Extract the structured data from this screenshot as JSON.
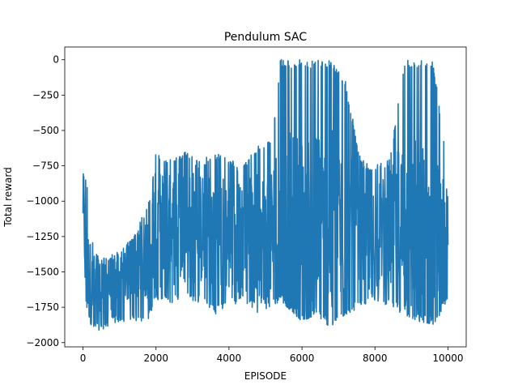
{
  "chart_data": {
    "type": "line",
    "title": "Pendulum SAC",
    "xlabel": "EPISODE",
    "ylabel": "Total reward",
    "xlim": [
      -500,
      10500
    ],
    "ylim": [
      -2030,
      90
    ],
    "xticks": [
      0,
      2000,
      4000,
      6000,
      8000,
      10000
    ],
    "xtick_labels": [
      "0",
      "2000",
      "4000",
      "6000",
      "8000",
      "10000"
    ],
    "yticks": [
      0,
      -250,
      -500,
      -750,
      -1000,
      -1250,
      -1500,
      -1750,
      -2000
    ],
    "ytick_labels": [
      "0",
      "−250",
      "−500",
      "−750",
      "−1000",
      "−1250",
      "−1500",
      "−1750",
      "−2000"
    ],
    "grid": false,
    "color": "#1f77b4",
    "series": [
      {
        "x": [
          0,
          100,
          300,
          600,
          1000,
          1400,
          1800,
          2000,
          2400,
          2800,
          3200,
          3600,
          4000,
          4400,
          4800,
          5200,
          5400,
          5600,
          6000,
          6400,
          6800,
          7200,
          7600,
          8000,
          8400,
          8800,
          9200,
          9600,
          10000
        ],
        "upper": [
          -750,
          -850,
          -1350,
          -1400,
          -1350,
          -1250,
          -1000,
          -650,
          -700,
          -650,
          -720,
          -650,
          -700,
          -750,
          -600,
          -550,
          0,
          0,
          0,
          0,
          0,
          -150,
          -700,
          -750,
          -700,
          0,
          0,
          0,
          -770
        ],
        "lower": [
          -1300,
          -1800,
          -1920,
          -1900,
          -1850,
          -1850,
          -1850,
          -1700,
          -1720,
          -1700,
          -1720,
          -1800,
          -1750,
          -1700,
          -1800,
          -1750,
          -1700,
          -1750,
          -1850,
          -1800,
          -1900,
          -1800,
          -1750,
          -1700,
          -1750,
          -1800,
          -1850,
          -1870,
          -1720
        ],
        "mid": [
          -1000,
          -1500,
          -1650,
          -1600,
          -1550,
          -1450,
          -1350,
          -1200,
          -1200,
          -1150,
          -1200,
          -1200,
          -1250,
          -1250,
          -1250,
          -1200,
          -1150,
          -1200,
          -1250,
          -1200,
          -1250,
          -1250,
          -1300,
          -1250,
          -1200,
          -1200,
          -1300,
          -1350,
          -1300
        ]
      }
    ]
  }
}
